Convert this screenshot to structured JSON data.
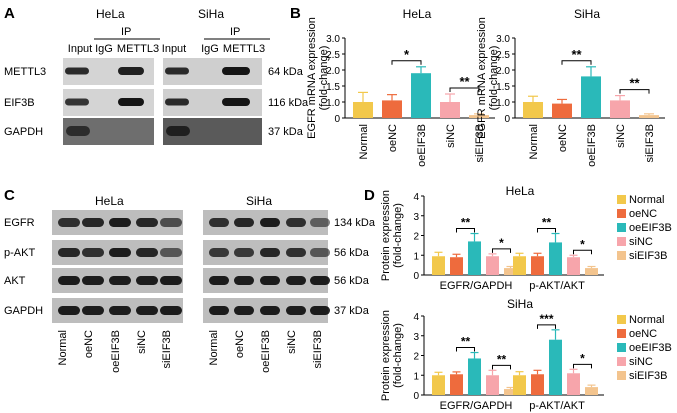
{
  "colors": {
    "normal": "#f2c84b",
    "oeNC": "#ee6b3d",
    "oeEIF3B": "#2ab9b9",
    "siNC": "#f7a5ab",
    "siEIF3B": "#f3c48e",
    "blot_bg": "#5f5f5f"
  },
  "panelA": {
    "label": "A",
    "cells": [
      "HeLa",
      "SiHa"
    ],
    "ip_label": "IP",
    "lanes": [
      "Input",
      "IgG",
      "METTL3"
    ],
    "rows": [
      "METTL3",
      "EIF3B",
      "GAPDH"
    ],
    "sizes": [
      "64 kDa",
      "116 kDa",
      "37 kDa"
    ]
  },
  "panelC": {
    "label": "C",
    "cells": [
      "HeLa",
      "SiHa"
    ],
    "rows": [
      "EGFR",
      "p-AKT",
      "AKT",
      "GAPDH"
    ],
    "sizes": [
      "134 kDa",
      "56 kDa",
      "56 kDa",
      "37 kDa"
    ],
    "lanes": [
      "Normal",
      "oeNC",
      "oeEIF3B",
      "siNC",
      "siEIF3B"
    ]
  },
  "chart_data": [
    {
      "panel": "B",
      "type": "bar",
      "title": "HeLa",
      "ylabel": "EGFR mRNA expression (fold-change)",
      "ylim": [
        0,
        3
      ],
      "yticks": [
        "0",
        "1.0",
        "1.5",
        "2.0",
        "2.5",
        "3.0"
      ],
      "categories": [
        "Normal",
        "oeNC",
        "oeEIF3B",
        "siNC",
        "siEIF3B"
      ],
      "values": [
        1.0,
        1.05,
        1.9,
        1.0,
        0.18
      ],
      "errors": [
        0.3,
        0.18,
        0.2,
        0.25,
        0.08
      ],
      "significance": [
        {
          "pair": "oeNC-oeEIF3B",
          "mark": "*"
        },
        {
          "pair": "siNC-siEIF3B",
          "mark": "**"
        }
      ]
    },
    {
      "panel": "B",
      "type": "bar",
      "title": "SiHa",
      "ylabel": "EGFR mRNA expression (fold-change)",
      "ylim": [
        0,
        3
      ],
      "yticks": [
        "0",
        "1.0",
        "1.5",
        "2.0",
        "2.5",
        "3.0"
      ],
      "categories": [
        "Normal",
        "oeNC",
        "oeEIF3B",
        "siNC",
        "siEIF3B"
      ],
      "values": [
        1.0,
        0.9,
        1.8,
        1.05,
        0.18
      ],
      "errors": [
        0.18,
        0.18,
        0.3,
        0.15,
        0.08
      ],
      "significance": [
        {
          "pair": "oeNC-oeEIF3B",
          "mark": "**"
        },
        {
          "pair": "siNC-siEIF3B",
          "mark": "**"
        }
      ]
    },
    {
      "panel": "D",
      "type": "bar",
      "title": "HeLa",
      "ylabel": "Protein expression (fold-change)",
      "ylim": [
        0,
        4
      ],
      "yticks": [
        "0",
        "1",
        "2",
        "3",
        "4"
      ],
      "groups": [
        "EGFR/GAPDH",
        "p-AKT/AKT"
      ],
      "series": [
        {
          "name": "Normal",
          "values": [
            0.95,
            0.95
          ],
          "errors": [
            0.2,
            0.15
          ]
        },
        {
          "name": "oeNC",
          "values": [
            0.9,
            0.95
          ],
          "errors": [
            0.15,
            0.15
          ]
        },
        {
          "name": "oeEIF3B",
          "values": [
            1.7,
            1.65
          ],
          "errors": [
            0.4,
            0.45
          ]
        },
        {
          "name": "siNC",
          "values": [
            0.95,
            0.9
          ],
          "errors": [
            0.12,
            0.1
          ]
        },
        {
          "name": "siEIF3B",
          "values": [
            0.35,
            0.35
          ],
          "errors": [
            0.08,
            0.08
          ]
        }
      ],
      "significance": [
        {
          "group": "EGFR/GAPDH",
          "marks": [
            "**",
            "*"
          ]
        },
        {
          "group": "p-AKT/AKT",
          "marks": [
            "**",
            "*"
          ]
        }
      ]
    },
    {
      "panel": "D",
      "type": "bar",
      "title": "SiHa",
      "ylabel": "Protein expression (fold-change)",
      "ylim": [
        0,
        4
      ],
      "yticks": [
        "0",
        "1",
        "2",
        "3",
        "4"
      ],
      "groups": [
        "EGFR/GAPDH",
        "p-AKT/AKT"
      ],
      "series": [
        {
          "name": "Normal",
          "values": [
            1.0,
            1.0
          ],
          "errors": [
            0.15,
            0.18
          ]
        },
        {
          "name": "oeNC",
          "values": [
            1.05,
            1.05
          ],
          "errors": [
            0.12,
            0.2
          ]
        },
        {
          "name": "oeEIF3B",
          "values": [
            1.85,
            2.8
          ],
          "errors": [
            0.3,
            0.5
          ]
        },
        {
          "name": "siNC",
          "values": [
            1.0,
            1.1
          ],
          "errors": [
            0.25,
            0.2
          ]
        },
        {
          "name": "siEIF3B",
          "values": [
            0.3,
            0.4
          ],
          "errors": [
            0.08,
            0.1
          ]
        }
      ],
      "significance": [
        {
          "group": "EGFR/GAPDH",
          "marks": [
            "**",
            "**"
          ]
        },
        {
          "group": "p-AKT/AKT",
          "marks": [
            "***",
            "*"
          ]
        }
      ]
    }
  ],
  "panelB_label": "B",
  "panelD_label": "D",
  "legend": {
    "items": [
      "Normal",
      "oeNC",
      "oeEIF3B",
      "siNC",
      "siEIF3B"
    ]
  }
}
